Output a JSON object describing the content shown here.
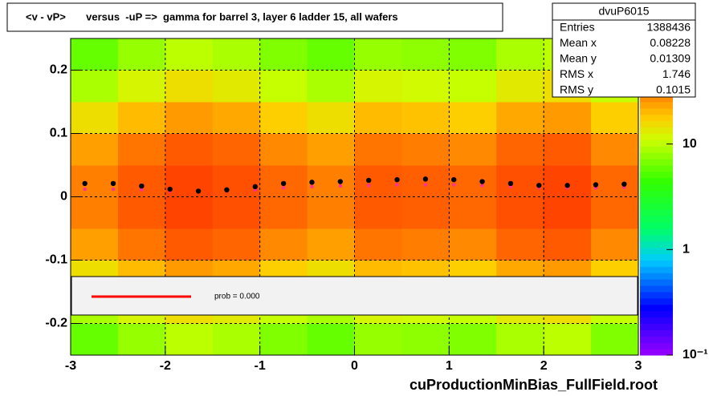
{
  "chart_data": {
    "type": "heatmap_profile",
    "title": "<v - vP>       versus  -uP =>  gamma for barrel 3, layer 6 ladder 15, all wafers",
    "footer": "cuProductionMinBias_FullField.root",
    "xlim": [
      -3,
      3
    ],
    "xticks": [
      -3,
      -2,
      -1,
      0,
      1,
      2,
      3
    ],
    "ylim": [
      -0.25,
      0.25
    ],
    "yticks": [
      -0.2,
      -0.1,
      0,
      0.1,
      0.2
    ],
    "zlim": [
      0.1,
      100
    ],
    "zlog": true,
    "zticks": [
      {
        "value": 0.1,
        "label": "10⁻¹"
      },
      1,
      10
    ],
    "grid": true,
    "x_bins": [
      -3,
      -2.5,
      -2,
      -1.5,
      -1,
      -0.5,
      0,
      0.5,
      1,
      1.5,
      2,
      2.5,
      3
    ],
    "y_bins": [
      -0.25,
      -0.2,
      -0.15,
      -0.1,
      -0.05,
      0,
      0.05,
      0.1,
      0.15,
      0.2,
      0.25
    ],
    "z": [
      [
        6,
        8,
        10,
        9,
        7,
        6,
        8,
        7.6,
        7,
        9,
        10,
        7
      ],
      [
        9,
        12,
        15,
        13.5,
        10.5,
        9,
        12,
        11.4,
        10.5,
        13.5,
        15,
        10.5
      ],
      [
        15,
        20,
        25,
        22.5,
        17.5,
        15,
        20,
        19,
        17.5,
        22.5,
        25,
        17.5
      ],
      [
        24,
        32,
        40,
        36,
        28,
        24,
        32,
        30.4,
        28,
        36,
        40,
        28
      ],
      [
        30,
        40,
        50,
        45,
        35,
        30,
        40,
        38,
        35,
        45,
        50,
        35
      ],
      [
        30,
        40,
        50,
        45,
        35,
        30,
        40,
        38,
        35,
        45,
        50,
        35
      ],
      [
        24,
        32,
        40,
        36,
        28,
        24,
        32,
        30.4,
        28,
        36,
        40,
        28
      ],
      [
        15,
        20,
        25,
        22.5,
        17.5,
        15,
        20,
        19,
        17.5,
        22.5,
        25,
        17.5
      ],
      [
        9,
        12,
        15,
        13.5,
        10.5,
        9,
        12,
        11.4,
        10.5,
        13.5,
        15,
        10.5
      ],
      [
        6,
        8,
        10,
        9,
        7,
        6,
        8,
        7.6,
        7,
        9,
        10,
        7
      ]
    ],
    "x": [
      -2.85,
      -2.55,
      -2.25,
      -1.95,
      -1.65,
      -1.35,
      -1.05,
      -0.75,
      -0.45,
      -0.15,
      0.15,
      0.45,
      0.75,
      1.05,
      1.35,
      1.65,
      1.95,
      2.25,
      2.55,
      2.85
    ],
    "series": [
      {
        "color": "#ff3399",
        "values": [
          0.012,
          0.012,
          0.011,
          0.009,
          0.008,
          0.009,
          0.011,
          0.014,
          0.016,
          0.017,
          0.018,
          0.019,
          0.019,
          0.019,
          0.018,
          0.016,
          0.014,
          0.014,
          0.014,
          0.015
        ]
      },
      {
        "color": "#000000",
        "values": [
          0.021,
          0.021,
          0.017,
          0.012,
          0.009,
          0.011,
          0.016,
          0.021,
          0.023,
          0.024,
          0.026,
          0.027,
          0.028,
          0.027,
          0.024,
          0.021,
          0.018,
          0.018,
          0.019,
          0.02
        ]
      }
    ],
    "legend": {
      "text": "prob = 0.000",
      "color": "#ff0000"
    },
    "stats": {
      "title": "dvuP6015",
      "rows": [
        [
          "Entries",
          "1388436"
        ],
        [
          "Mean x",
          "0.08228"
        ],
        [
          "Mean y",
          "0.01309"
        ],
        [
          "RMS x",
          "1.746"
        ],
        [
          "RMS y",
          "0.1015"
        ]
      ]
    }
  }
}
